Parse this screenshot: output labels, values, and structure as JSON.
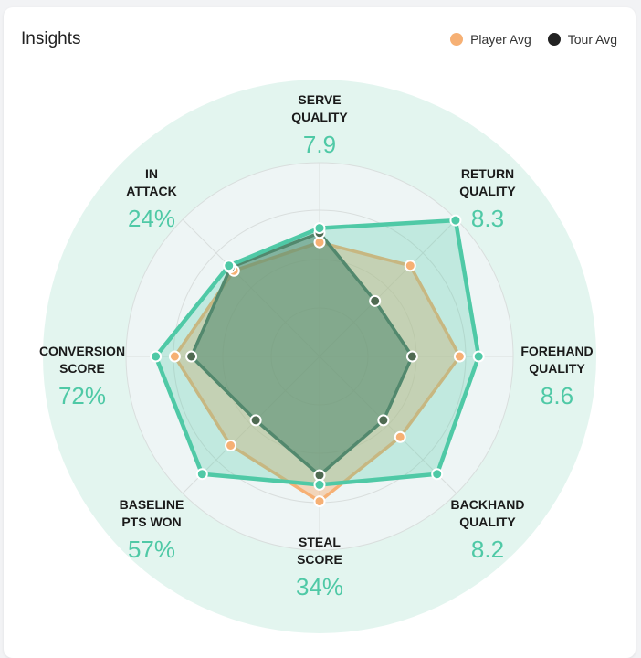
{
  "card": {
    "title": "Insights"
  },
  "legend": [
    {
      "label": "Player Avg",
      "color": "#f6b074"
    },
    {
      "label": "Tour Avg",
      "color": "#222222"
    }
  ],
  "colors": {
    "accent": "#4fc9a6",
    "player": "#f6b074",
    "tour": "#2b2b2b",
    "outer_disc": "#e3f5ef",
    "inner_disc": "#eef5f5"
  },
  "chart_data": {
    "type": "radar",
    "scale": [
      0,
      100
    ],
    "axes": [
      {
        "label": [
          "SERVE",
          "QUALITY"
        ],
        "value_label": "7.9"
      },
      {
        "label": [
          "RETURN",
          "QUALITY"
        ],
        "value_label": "8.3"
      },
      {
        "label": [
          "FOREHAND",
          "QUALITY"
        ],
        "value_label": "8.6"
      },
      {
        "label": [
          "BACKHAND",
          "QUALITY"
        ],
        "value_label": "8.2"
      },
      {
        "label": [
          "STEAL",
          "SCORE"
        ],
        "value_label": "34%"
      },
      {
        "label": [
          "BASELINE",
          "PTS WON"
        ],
        "value_label": "57%"
      },
      {
        "label": [
          "CONVERSION",
          "SCORE"
        ],
        "value_label": "72%"
      },
      {
        "label": [
          "IN",
          "ATTACK"
        ],
        "value_label": "24%"
      }
    ],
    "series": [
      {
        "name": "Player Avg",
        "values": [
          48,
          54,
          59,
          48,
          61,
          53,
          61,
          51
        ]
      },
      {
        "name": "Tour Avg",
        "values": [
          52,
          33,
          39,
          38,
          50,
          38,
          54,
          53
        ]
      },
      {
        "name": "",
        "values": [
          54,
          81,
          67,
          70,
          54,
          70,
          69,
          54
        ]
      }
    ]
  }
}
